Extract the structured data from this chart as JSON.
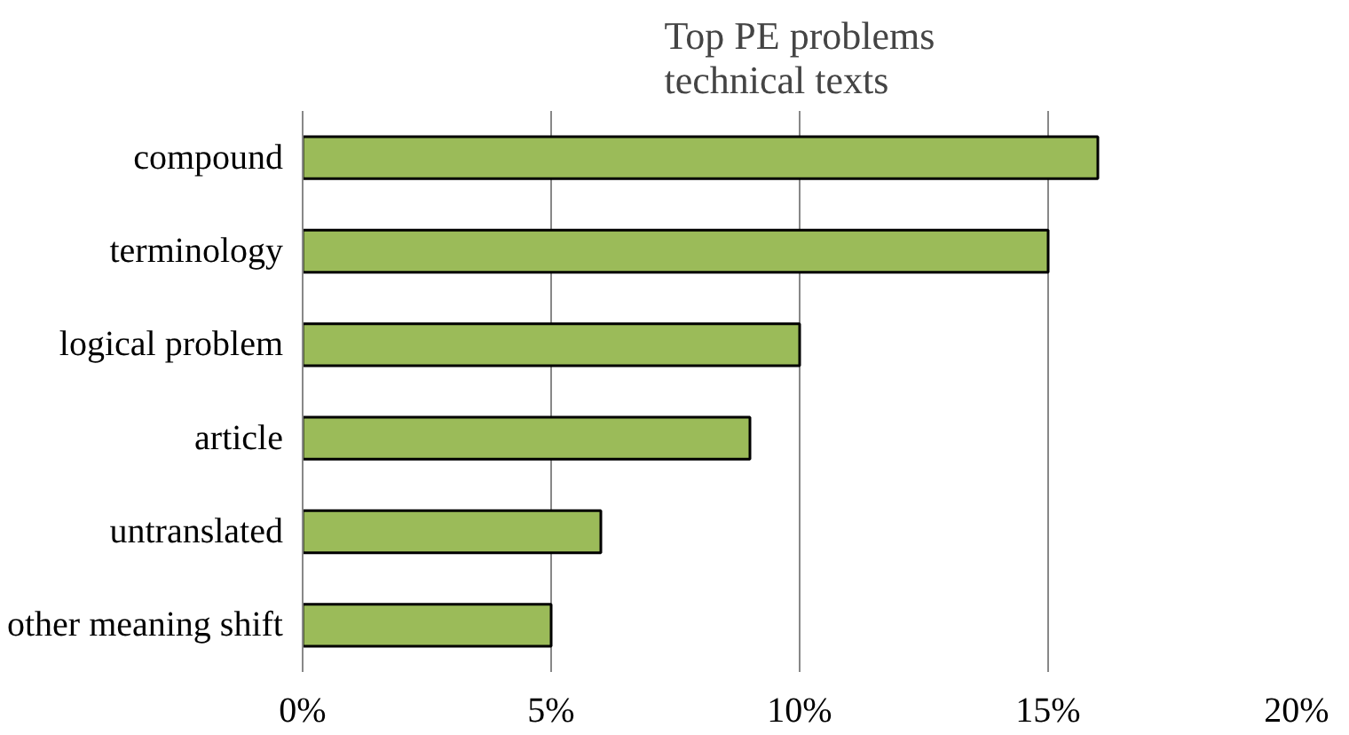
{
  "chart_data": {
    "type": "bar",
    "orientation": "horizontal",
    "title": "Top PE problems\ntechnical texts",
    "categories": [
      "compound",
      "terminology",
      "logical problem",
      "article",
      "untranslated",
      "other meaning shift"
    ],
    "values": [
      16,
      15,
      10,
      9,
      6,
      5
    ],
    "color": "#9bbb59",
    "xlim": [
      0,
      20
    ],
    "xticks": [
      {
        "value": 0,
        "label": "0%"
      },
      {
        "value": 5,
        "label": "5%"
      },
      {
        "value": 10,
        "label": "10%"
      },
      {
        "value": 15,
        "label": "15%"
      },
      {
        "value": 20,
        "label": "20%"
      }
    ],
    "grid": "x"
  }
}
